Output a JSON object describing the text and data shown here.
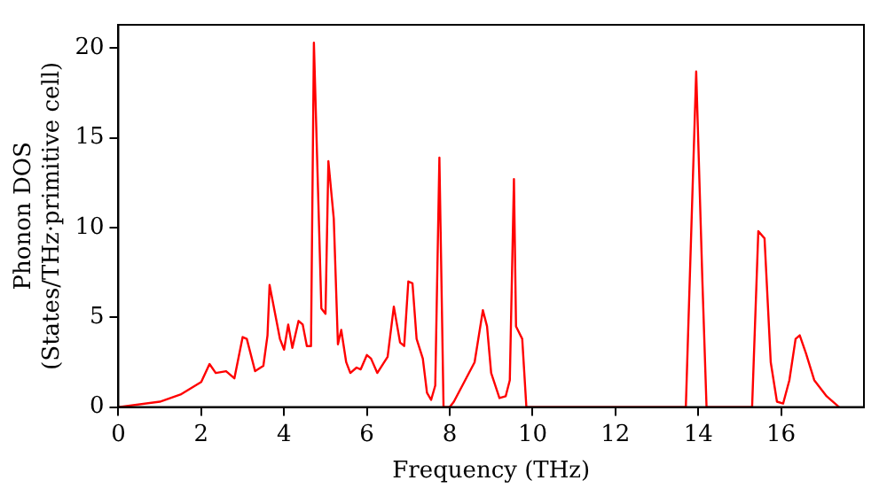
{
  "chart_data": {
    "type": "line",
    "xlabel": "Frequency (THz)",
    "ylabel": "Phonon DOS\n(States/THz·primitive cell)",
    "xlim": [
      0,
      18
    ],
    "xticks": [
      0,
      2,
      4,
      6,
      8,
      10,
      12,
      14,
      16
    ],
    "ylim": [
      0,
      21.3
    ],
    "yticks": [
      0,
      5,
      10,
      15,
      20
    ],
    "grid": false,
    "legend": false,
    "marker": "none",
    "line_style": "solid",
    "series": [
      {
        "color": "#ff0000",
        "x": [
          0,
          1,
          1.5,
          2,
          2.2,
          2.35,
          2.6,
          2.8,
          3.0,
          3.1,
          3.3,
          3.5,
          3.6,
          3.65,
          3.9,
          4.0,
          4.1,
          4.2,
          4.35,
          4.45,
          4.55,
          4.65,
          4.72,
          4.9,
          5.0,
          5.07,
          5.2,
          5.3,
          5.38,
          5.5,
          5.6,
          5.75,
          5.85,
          6.0,
          6.1,
          6.25,
          6.5,
          6.65,
          6.8,
          6.9,
          7.0,
          7.1,
          7.2,
          7.35,
          7.45,
          7.55,
          7.65,
          7.75,
          7.85,
          8.0,
          8.1,
          8.6,
          8.8,
          8.9,
          9.0,
          9.2,
          9.35,
          9.45,
          9.55,
          9.6,
          9.75,
          9.85,
          13.7,
          13.95,
          14.1,
          14.2,
          15.3,
          15.45,
          15.6,
          15.75,
          15.9,
          16.05,
          16.2,
          16.35,
          16.45,
          16.6,
          16.8,
          17.1,
          17.4
        ],
        "values": [
          0,
          0.3,
          0.7,
          1.4,
          2.4,
          1.9,
          2.0,
          1.6,
          3.9,
          3.8,
          2.0,
          2.3,
          4.0,
          6.8,
          3.8,
          3.2,
          4.6,
          3.3,
          4.8,
          4.6,
          3.4,
          3.4,
          20.3,
          5.5,
          5.2,
          13.7,
          10.5,
          3.5,
          4.3,
          2.5,
          1.9,
          2.2,
          2.1,
          2.9,
          2.7,
          1.9,
          2.8,
          5.6,
          3.6,
          3.4,
          7.0,
          6.9,
          3.8,
          2.7,
          0.8,
          0.4,
          1.2,
          13.9,
          0,
          0,
          0.3,
          2.5,
          5.4,
          4.5,
          1.9,
          0.5,
          0.6,
          1.5,
          12.7,
          4.5,
          3.8,
          0,
          0,
          18.7,
          7,
          0,
          0,
          9.8,
          9.4,
          2.5,
          0.3,
          0.2,
          1.5,
          3.8,
          4.0,
          3.0,
          1.5,
          0.6,
          0
        ]
      }
    ]
  }
}
